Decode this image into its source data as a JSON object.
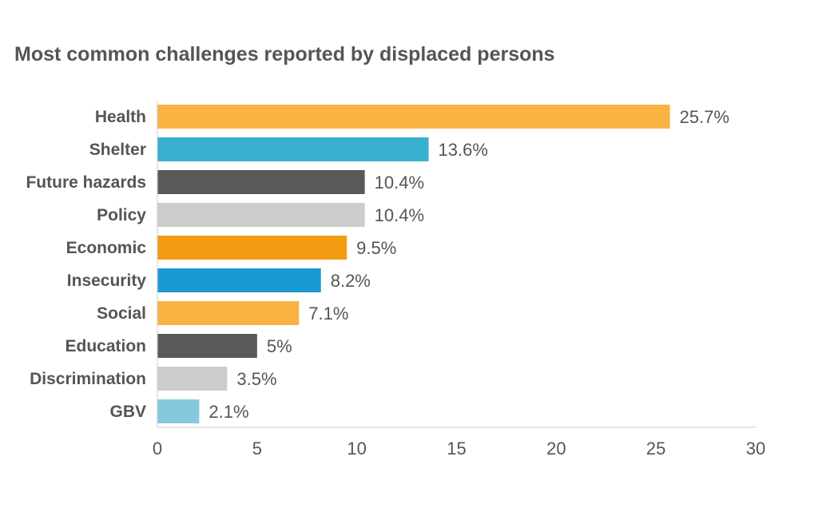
{
  "chart_data": {
    "type": "bar",
    "orientation": "horizontal",
    "title": "Most common challenges reported by displaced persons",
    "xlabel": "",
    "ylabel": "",
    "xlim": [
      0,
      30
    ],
    "xticks": [
      0,
      5,
      10,
      15,
      20,
      25,
      30
    ],
    "grid": false,
    "categories": [
      "Health",
      "Shelter",
      "Future hazards",
      "Policy",
      "Economic",
      "Insecurity",
      "Social",
      "Education",
      "Discrimination",
      "GBV"
    ],
    "values": [
      25.7,
      13.6,
      10.4,
      10.4,
      9.5,
      8.2,
      7.1,
      5,
      3.5,
      2.1
    ],
    "value_labels": [
      "25.7%",
      "13.6%",
      "10.4%",
      "10.4%",
      "9.5%",
      "8.2%",
      "7.1%",
      "5%",
      "3.5%",
      "2.1%"
    ],
    "colors": [
      "#F9B342",
      "#37AFCD",
      "#58595B",
      "#CCCCCC",
      "#F39C12",
      "#1B99D2",
      "#F9B342",
      "#58595B",
      "#CCCCCC",
      "#85C9DF"
    ]
  }
}
